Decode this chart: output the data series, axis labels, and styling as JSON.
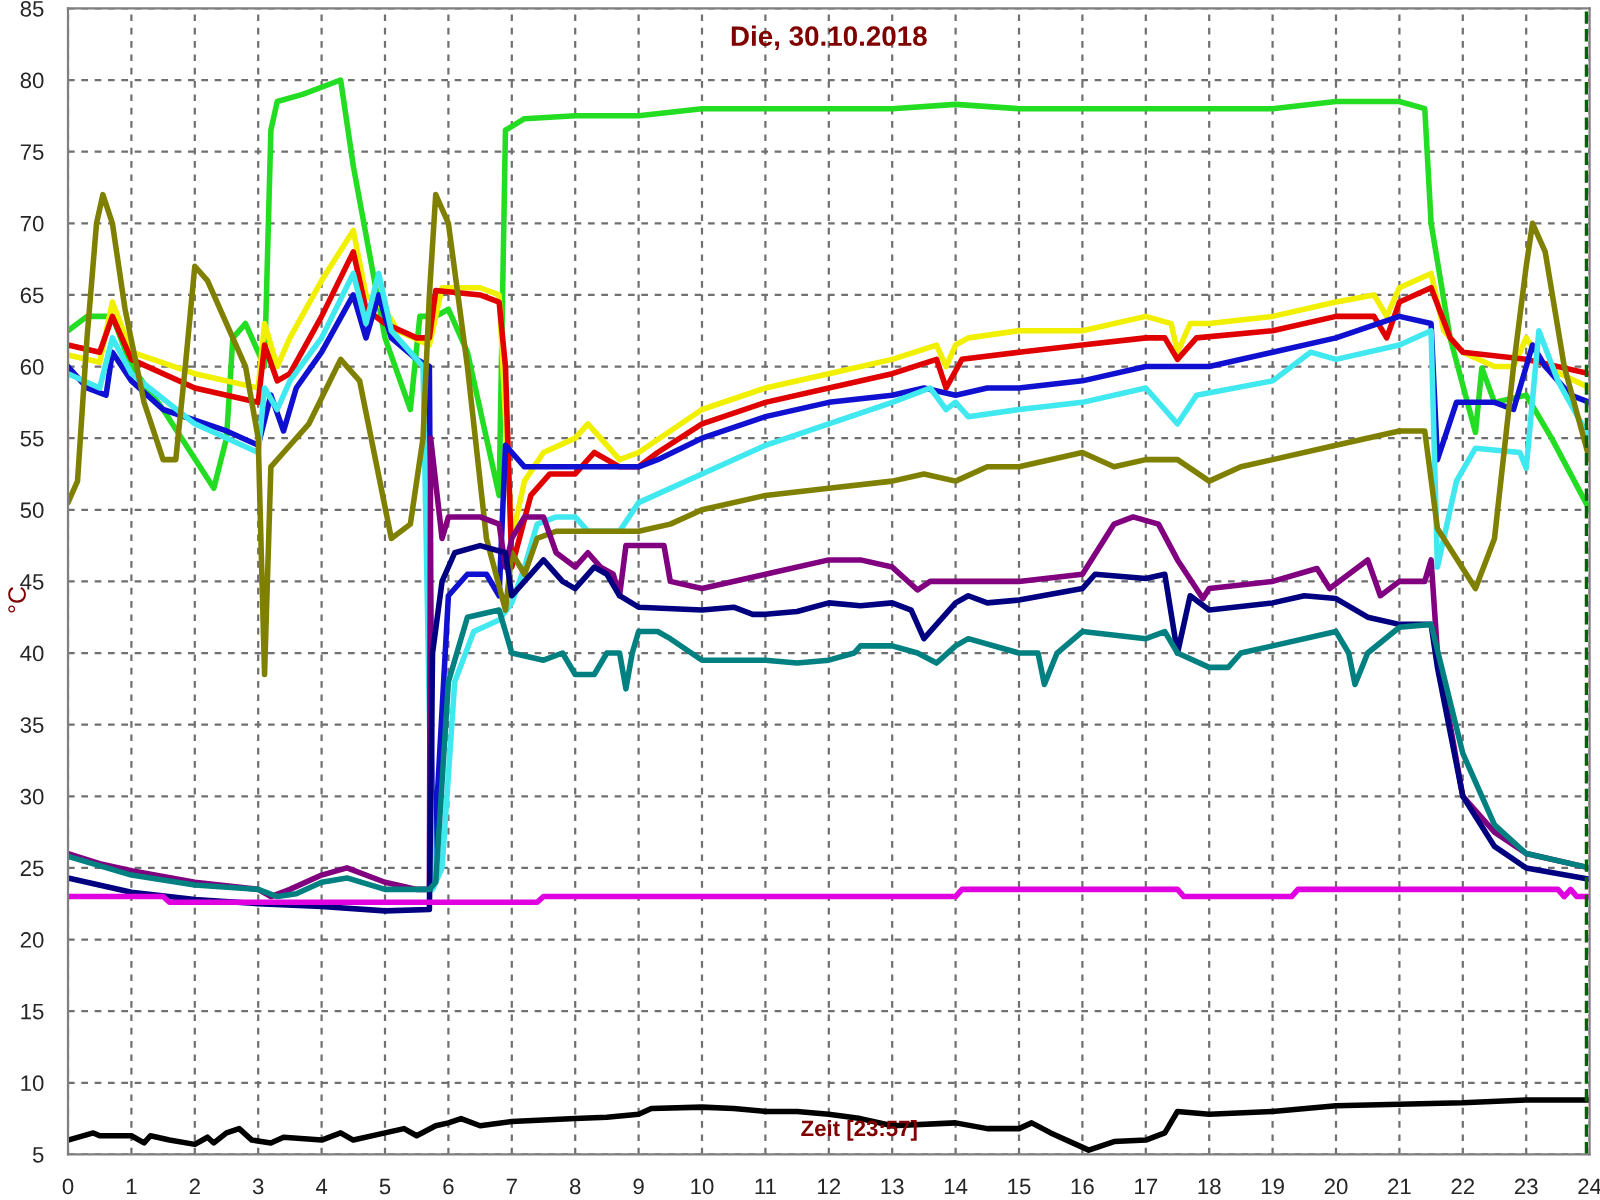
{
  "chart_data": {
    "type": "line",
    "title": "Die, 30.10.2018",
    "ylabel": "°C",
    "annotations": [
      "Zeit [23:57]"
    ],
    "xlim": [
      0,
      24
    ],
    "xticks": [
      0,
      1,
      2,
      3,
      4,
      5,
      6,
      7,
      8,
      9,
      10,
      11,
      12,
      13,
      14,
      15,
      16,
      17,
      18,
      19,
      20,
      21,
      22,
      23,
      24
    ],
    "ylim": [
      5,
      85
    ],
    "yticks": [
      5,
      10,
      15,
      20,
      25,
      30,
      35,
      40,
      45,
      50,
      55,
      60,
      65,
      70,
      75,
      80,
      85
    ],
    "grid": true,
    "legend": false,
    "marker": "none",
    "line_style": "solid",
    "ref_lines": [
      {
        "axis": "x",
        "value": 23.95,
        "color": "#006400",
        "line_style": "dashed"
      }
    ],
    "series": [
      {
        "color": "#22dd22",
        "x": [
          0,
          0.3,
          0.7,
          1.0,
          1.5,
          2.3,
          2.5,
          2.6,
          2.8,
          3.0,
          3.1,
          3.2,
          3.3,
          3.7,
          4.3,
          4.5,
          5.0,
          5.4,
          5.55,
          5.8,
          6.0,
          6.3,
          6.6,
          6.8,
          6.9,
          7.2,
          8,
          9,
          10,
          11,
          12,
          13,
          14,
          15,
          16,
          17,
          18,
          19,
          20,
          21,
          21.4,
          21.5,
          21.8,
          22.2,
          22.3,
          22.5,
          23.0,
          23.4,
          24
        ],
        "values": [
          62.5,
          63.5,
          63.5,
          60,
          57,
          51.5,
          55,
          62,
          63,
          61,
          60,
          76.5,
          78.5,
          79,
          80,
          74,
          62,
          57,
          63.5,
          63.5,
          64,
          61,
          55,
          51,
          76.5,
          77.3,
          77.5,
          77.5,
          78,
          78,
          78,
          78,
          78.3,
          78,
          78,
          78,
          78,
          78,
          78.5,
          78.5,
          78,
          70,
          62,
          55.4,
          59.9,
          57.5,
          58,
          55,
          50
        ]
      },
      {
        "color": "#f0f000",
        "x": [
          0,
          0.5,
          0.7,
          1.0,
          2,
          3,
          3.1,
          3.3,
          3.5,
          4,
          4.5,
          4.7,
          5.0,
          5.2,
          5.7,
          5.9,
          6.5,
          6.8,
          7.0,
          7.2,
          7.5,
          8,
          8.2,
          8.7,
          9,
          10,
          11,
          12,
          13,
          13.7,
          13.85,
          14.0,
          14.2,
          15,
          16,
          17,
          17.4,
          17.5,
          17.7,
          18,
          19,
          20,
          20.6,
          20.8,
          21,
          21.5,
          21.7,
          22,
          22.5,
          22.8,
          23,
          23.3,
          24
        ],
        "values": [
          60.8,
          60.3,
          64.5,
          61,
          59.5,
          58.5,
          63,
          60,
          62,
          66,
          69.5,
          65,
          64,
          62.5,
          61.5,
          65.5,
          65.5,
          65,
          48,
          52,
          54,
          55,
          56,
          53.5,
          54,
          57,
          58.5,
          59.5,
          60.5,
          61.5,
          60,
          61.5,
          62,
          62.5,
          62.5,
          63.5,
          63,
          61,
          63,
          63,
          63.5,
          64.5,
          65,
          63.5,
          65.5,
          66.5,
          62.5,
          61,
          60,
          60,
          62,
          60,
          58.5
        ]
      },
      {
        "color": "#e00000",
        "x": [
          0,
          0.5,
          0.7,
          1.0,
          2,
          3,
          3.1,
          3.3,
          3.5,
          4,
          4.5,
          4.7,
          5.0,
          5.5,
          5.7,
          5.8,
          6.5,
          6.8,
          6.9,
          7.0,
          7.3,
          7.6,
          8.0,
          8.3,
          8.7,
          9.0,
          9.3,
          10,
          11,
          12,
          13,
          13.7,
          13.85,
          14.1,
          15,
          16,
          17,
          17.3,
          17.5,
          17.8,
          19,
          20,
          20.6,
          20.8,
          21,
          21.5,
          21.8,
          22,
          23,
          24
        ],
        "values": [
          61.5,
          61,
          63.5,
          60.5,
          58.5,
          57.5,
          61.5,
          59,
          59.5,
          63.5,
          68,
          64,
          63,
          62,
          62,
          65.3,
          65,
          64.5,
          60,
          46,
          51,
          52.5,
          52.5,
          54,
          53,
          53,
          54,
          56,
          57.5,
          58.5,
          59.5,
          60.5,
          58.5,
          60.5,
          61,
          61.5,
          62,
          62,
          60.5,
          62,
          62.5,
          63.5,
          63.5,
          62,
          64.5,
          65.5,
          62,
          61,
          60.5,
          59.5
        ]
      },
      {
        "color": "#1010d0",
        "x": [
          0,
          0.3,
          0.6,
          0.7,
          1,
          1.5,
          2.5,
          3.0,
          3.2,
          3.4,
          3.6,
          4,
          4.5,
          4.7,
          4.9,
          5.1,
          5.5,
          5.7,
          5.75,
          6.0,
          6.3,
          6.6,
          6.8,
          6.9,
          7.2,
          8,
          9,
          9.3,
          10,
          11,
          12,
          13,
          13.5,
          14,
          14.5,
          15,
          16,
          17,
          18,
          19,
          20,
          21,
          21.5,
          21.6,
          21.9,
          22.5,
          22.8,
          23.1,
          23.3,
          23.7,
          24
        ],
        "values": [
          60,
          58.5,
          58,
          61,
          59,
          57,
          55.5,
          54.5,
          58,
          55.5,
          58.5,
          61,
          65,
          62,
          65,
          62,
          60.5,
          60,
          24,
          44,
          45.5,
          45.5,
          44,
          54.5,
          53,
          53,
          53,
          53.5,
          55,
          56.5,
          57.5,
          58,
          58.5,
          58,
          58.5,
          58.5,
          59,
          60,
          60,
          61,
          62,
          63.5,
          63,
          53.5,
          57.5,
          57.5,
          57,
          61.5,
          60,
          58,
          57.5
        ]
      },
      {
        "color": "#40e8f0",
        "x": [
          0,
          0.5,
          0.7,
          1,
          2,
          3,
          3.1,
          3.3,
          3.5,
          4,
          4.5,
          4.7,
          4.9,
          5.1,
          5.5,
          5.6,
          5.65,
          5.75,
          5.9,
          6.1,
          6.4,
          6.8,
          7.0,
          7.2,
          7.4,
          7.7,
          8,
          8.2,
          8.7,
          9,
          10,
          11,
          12,
          13,
          13.6,
          13.85,
          14,
          14.2,
          15,
          16,
          17,
          17.3,
          17.5,
          17.8,
          19,
          19.6,
          20,
          21,
          21.5,
          21.6,
          21.9,
          22.2,
          22.9,
          23.0,
          23.2,
          23.5,
          24
        ],
        "values": [
          59.5,
          58.5,
          62,
          59.5,
          56,
          54,
          58.5,
          57,
          59,
          62,
          66.5,
          63,
          66.5,
          62.5,
          60.5,
          60,
          48,
          23.5,
          25,
          38,
          41.5,
          42.3,
          43.5,
          46,
          49,
          49.5,
          49.5,
          48.5,
          48.5,
          50.5,
          52.5,
          54.5,
          56,
          57.5,
          58.5,
          57,
          57.5,
          56.5,
          57,
          57.5,
          58.5,
          57,
          56,
          58,
          59,
          61,
          60.5,
          61.5,
          62.5,
          46,
          52,
          54.3,
          54,
          52.9,
          62.5,
          59,
          55
        ]
      },
      {
        "color": "#808000",
        "x": [
          0,
          0.15,
          0.3,
          0.45,
          0.55,
          0.7,
          0.9,
          1.2,
          1.5,
          1.7,
          1.85,
          2.0,
          2.2,
          2.5,
          2.8,
          3.0,
          3.1,
          3.2,
          3.4,
          3.8,
          4.3,
          4.6,
          5.1,
          5.4,
          5.6,
          5.7,
          5.8,
          6.0,
          6.3,
          6.6,
          6.9,
          7.0,
          7.2,
          7.4,
          7.7,
          8,
          9,
          9.5,
          10,
          11,
          12,
          13,
          13.5,
          14,
          14.5,
          15,
          16,
          16.5,
          17,
          17.5,
          18,
          18.5,
          19,
          20,
          21,
          21.4,
          21.6,
          22.2,
          22.5,
          22.8,
          23.0,
          23.1,
          23.3,
          23.6,
          24
        ],
        "values": [
          50.5,
          52,
          62,
          70,
          72,
          70,
          64,
          57.5,
          53.5,
          53.5,
          60,
          67,
          66,
          63,
          60,
          55,
          38.5,
          53,
          54,
          56,
          60.5,
          59,
          48,
          49,
          55,
          65,
          72,
          70,
          60,
          48,
          43,
          47,
          45.5,
          48,
          48.5,
          48.5,
          48.5,
          49,
          50,
          51,
          51.5,
          52,
          52.5,
          52,
          53,
          53,
          54,
          53,
          53.5,
          53.5,
          52,
          53,
          53.5,
          54.5,
          55.5,
          55.5,
          48.7,
          44.5,
          48,
          60,
          67,
          70,
          68,
          60,
          53.5
        ]
      },
      {
        "color": "#800080",
        "x": [
          0,
          0.5,
          1,
          2,
          3,
          3.2,
          3.5,
          4,
          4.4,
          5,
          5.5,
          5.7,
          5.72,
          5.9,
          6.0,
          6.5,
          6.8,
          6.9,
          7.0,
          7.2,
          7.5,
          7.7,
          8.0,
          8.2,
          8.4,
          8.6,
          8.7,
          8.8,
          9.4,
          9.5,
          10,
          11,
          12,
          12.5,
          13,
          13.4,
          13.6,
          14,
          15,
          16,
          16.5,
          16.8,
          17.2,
          17.5,
          17.9,
          18,
          19,
          19.7,
          19.9,
          20.5,
          20.7,
          21,
          21.4,
          21.5,
          21.6,
          22,
          22.5,
          23,
          24
        ],
        "values": [
          26,
          25.3,
          24.8,
          24,
          23.5,
          23,
          23.5,
          24.5,
          25,
          24,
          23.5,
          23.5,
          55,
          48,
          49.5,
          49.5,
          49,
          46,
          48,
          49.5,
          49.5,
          47,
          46,
          47,
          46,
          45.5,
          44,
          47.5,
          47.5,
          45,
          44.5,
          45.5,
          46.5,
          46.5,
          46,
          44.4,
          45,
          45,
          45,
          45.5,
          49,
          49.5,
          49,
          46.5,
          43.8,
          44.5,
          45,
          45.9,
          44.5,
          46.5,
          44,
          45,
          45,
          46.5,
          40,
          30,
          27.5,
          26,
          25
        ]
      },
      {
        "color": "#000080",
        "x": [
          0,
          1,
          2,
          3,
          4,
          5,
          5.7,
          5.75,
          5.9,
          6.1,
          6.5,
          6.9,
          7.0,
          7.2,
          7.5,
          7.8,
          8.0,
          8.3,
          8.5,
          8.7,
          9,
          10,
          10.5,
          10.8,
          11,
          11.5,
          12,
          12.5,
          13,
          13.3,
          13.5,
          14,
          14.2,
          14.5,
          15,
          16,
          16.2,
          17,
          17.3,
          17.5,
          17.7,
          18,
          19,
          19.5,
          20,
          20.5,
          21,
          21.5,
          21.6,
          22,
          22.5,
          23,
          24
        ],
        "values": [
          24.3,
          23.3,
          22.8,
          22.5,
          22.3,
          22.0,
          22.1,
          40,
          45,
          47,
          47.5,
          47,
          44,
          45,
          46.5,
          45,
          44.5,
          46,
          45.5,
          44,
          43.2,
          43,
          43.2,
          42.7,
          42.7,
          42.9,
          43.5,
          43.3,
          43.5,
          43,
          41,
          43.5,
          44,
          43.5,
          43.7,
          44.5,
          45.5,
          45.2,
          45.5,
          40,
          44,
          43,
          43.5,
          44,
          43.8,
          42.5,
          42,
          42,
          39,
          30,
          26.5,
          25,
          24.2
        ]
      },
      {
        "color": "#008080",
        "x": [
          0,
          1,
          2,
          3,
          3.3,
          3.6,
          4,
          4.4,
          5,
          5.7,
          5.8,
          6.0,
          6.3,
          6.8,
          6.9,
          7.0,
          7.5,
          7.8,
          8.0,
          8.3,
          8.5,
          8.7,
          8.8,
          8.9,
          9.0,
          9.3,
          9.5,
          10,
          11,
          11.5,
          12,
          12.4,
          12.5,
          13,
          13.4,
          13.7,
          14,
          14.2,
          15,
          15.3,
          15.4,
          15.6,
          16,
          17,
          17.3,
          17.5,
          18,
          18.3,
          18.5,
          19,
          20,
          20.2,
          20.3,
          20.5,
          21,
          21.5,
          22,
          22.5,
          23,
          24
        ],
        "values": [
          25.8,
          24.5,
          23.8,
          23.5,
          23,
          23.2,
          24,
          24.3,
          23.5,
          23.5,
          24,
          38,
          42.5,
          43,
          41.5,
          40,
          39.5,
          40,
          38.5,
          38.5,
          40,
          40,
          37.5,
          40,
          41.5,
          41.5,
          41,
          39.5,
          39.5,
          39.3,
          39.5,
          40,
          40.5,
          40.5,
          40,
          39.3,
          40.5,
          41,
          40,
          40,
          37.8,
          40,
          41.5,
          41,
          41.5,
          40,
          39,
          39,
          40,
          40.5,
          41.5,
          40,
          37.8,
          40,
          41.8,
          42,
          33,
          28,
          26,
          25
        ]
      },
      {
        "color": "#e000e0",
        "x": [
          0,
          1.5,
          1.6,
          7.4,
          7.5,
          14.0,
          14.1,
          17.5,
          17.6,
          19.3,
          19.4,
          23.5,
          23.6,
          23.7,
          23.8,
          24
        ],
        "values": [
          23,
          23,
          22.6,
          22.6,
          23,
          23,
          23.5,
          23.5,
          23,
          23,
          23.5,
          23.5,
          23,
          23.5,
          23,
          23
        ]
      },
      {
        "color": "#000000",
        "x": [
          0,
          0.4,
          0.5,
          1.0,
          1.2,
          1.3,
          1.6,
          2,
          2.2,
          2.3,
          2.5,
          2.7,
          2.9,
          3.2,
          3.4,
          4.0,
          4.3,
          4.5,
          5.0,
          5.3,
          5.5,
          5.8,
          6.0,
          6.2,
          6.5,
          7,
          8,
          8.5,
          9.0,
          9.2,
          10,
          10.5,
          11,
          11.5,
          12,
          12.5,
          13,
          14,
          14.5,
          15,
          15.2,
          15.5,
          16.1,
          16.5,
          17,
          17.3,
          17.5,
          18,
          19,
          20,
          21,
          22,
          23,
          24
        ],
        "values": [
          6,
          6.5,
          6.3,
          6.3,
          5.8,
          6.3,
          6.0,
          5.7,
          6.2,
          5.8,
          6.5,
          6.8,
          6.0,
          5.8,
          6.2,
          6.0,
          6.5,
          6.0,
          6.5,
          6.8,
          6.3,
          7.0,
          7.2,
          7.5,
          7.0,
          7.3,
          7.5,
          7.6,
          7.8,
          8.2,
          8.3,
          8.2,
          8.0,
          8.0,
          7.8,
          7.5,
          7.0,
          7.2,
          6.8,
          6.8,
          7.2,
          6.5,
          5.3,
          5.9,
          6.0,
          6.5,
          8.0,
          7.8,
          8.0,
          8.4,
          8.5,
          8.6,
          8.8,
          8.8
        ]
      }
    ]
  }
}
